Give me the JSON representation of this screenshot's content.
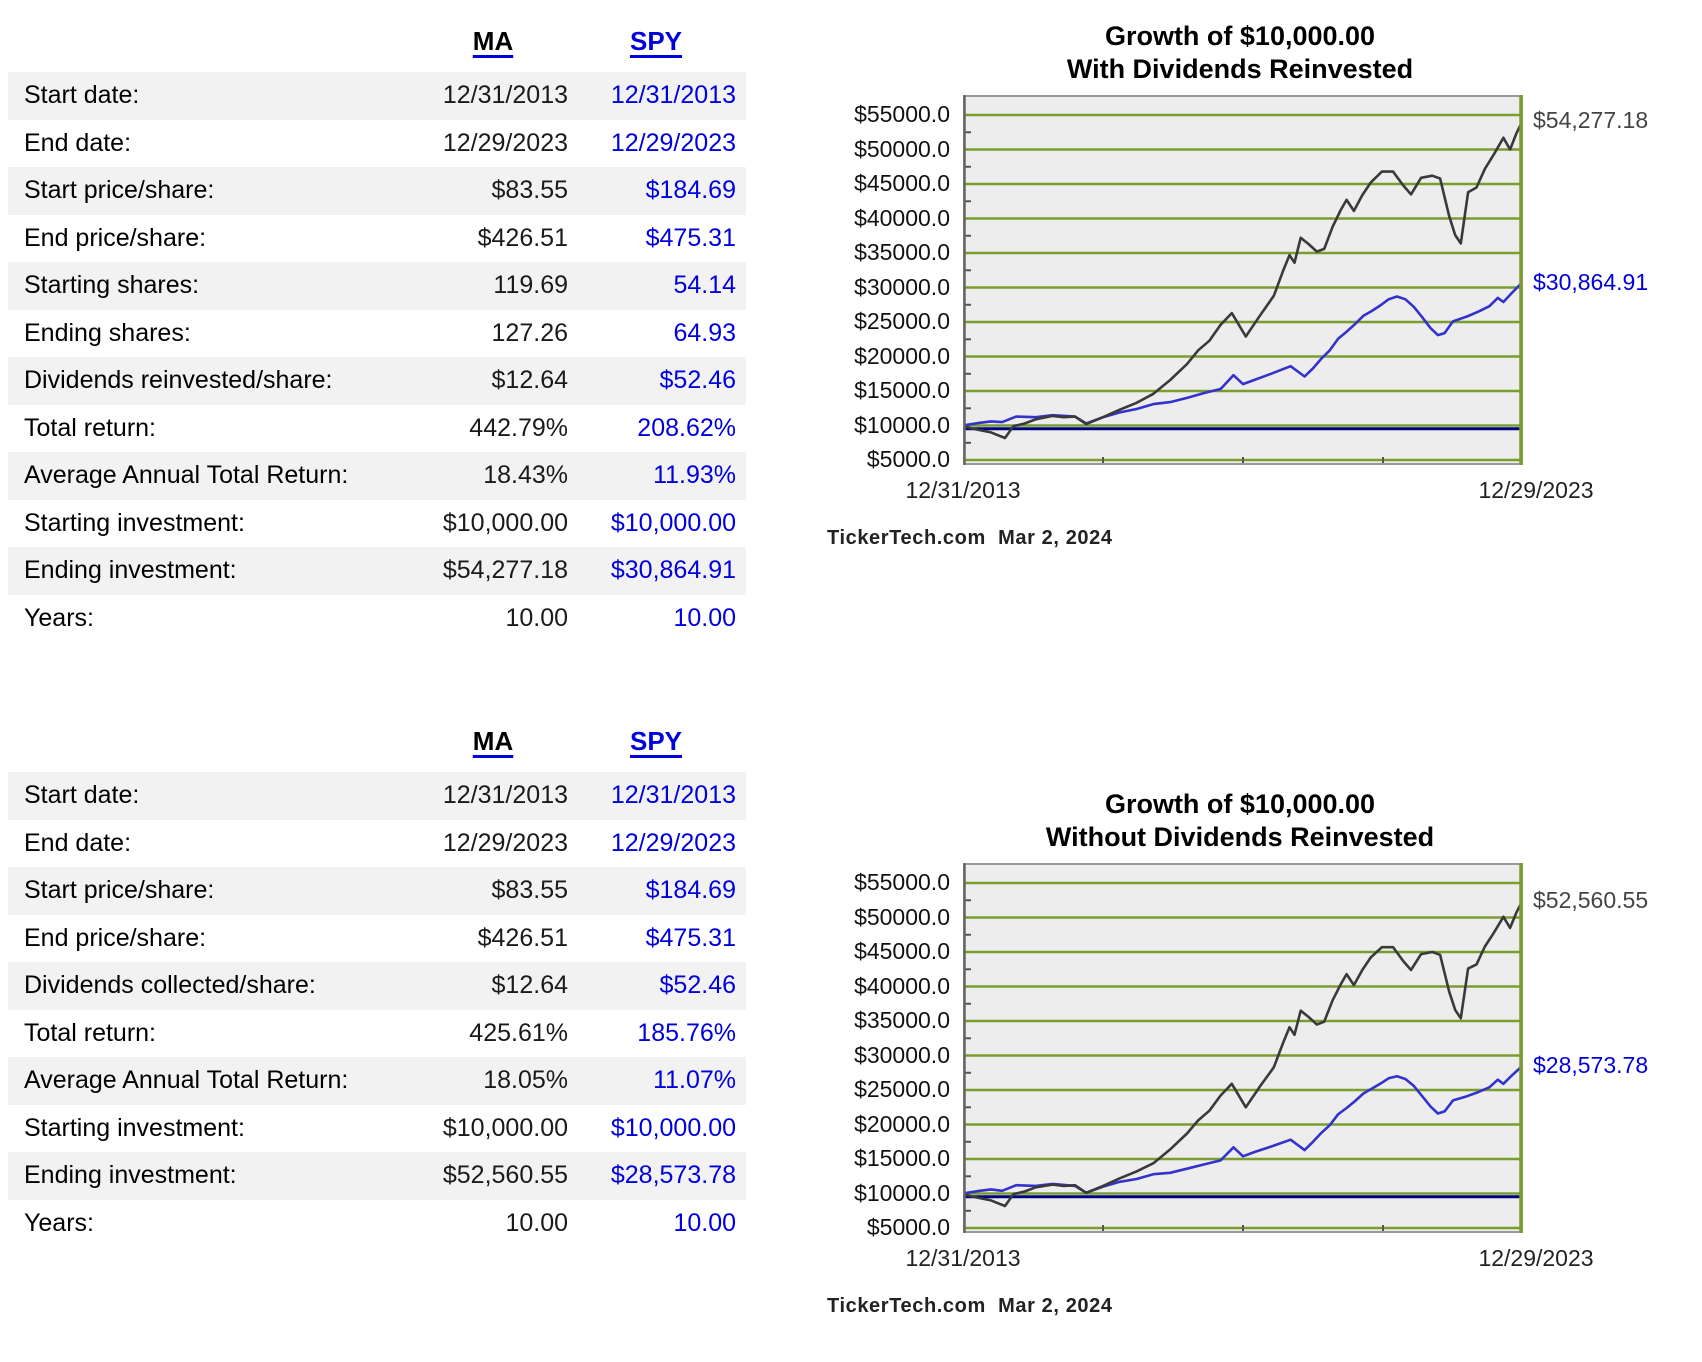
{
  "page": {
    "background": "#ffffff"
  },
  "colors": {
    "link_blue": "#0000dd",
    "ma_line": "#3a3a3a",
    "spy_line": "#3333cc",
    "grid_green": "#7a9e2e",
    "plot_bg": "#ededed",
    "baseline_navy": "#000080",
    "row_alt_gray": "#f2f2f2"
  },
  "tables": [
    {
      "name": "with-dividends",
      "columns": [
        "MA",
        "SPY"
      ],
      "rows": [
        {
          "label": "Start date:",
          "ma": "12/31/2013",
          "spy": "12/31/2013"
        },
        {
          "label": "End date:",
          "ma": "12/29/2023",
          "spy": "12/29/2023"
        },
        {
          "label": "Start price/share:",
          "ma": "$83.55",
          "spy": "$184.69"
        },
        {
          "label": "End price/share:",
          "ma": "$426.51",
          "spy": "$475.31"
        },
        {
          "label": "Starting shares:",
          "ma": "119.69",
          "spy": "54.14"
        },
        {
          "label": "Ending shares:",
          "ma": "127.26",
          "spy": "64.93"
        },
        {
          "label": "Dividends reinvested/share:",
          "ma": "$12.64",
          "spy": "$52.46"
        },
        {
          "label": "Total return:",
          "ma": "442.79%",
          "spy": "208.62%"
        },
        {
          "label": "Average Annual Total Return:",
          "ma": "18.43%",
          "spy": "11.93%"
        },
        {
          "label": "Starting investment:",
          "ma": "$10,000.00",
          "spy": "$10,000.00"
        },
        {
          "label": "Ending investment:",
          "ma": "$54,277.18",
          "spy": "$30,864.91"
        },
        {
          "label": "Years:",
          "ma": "10.00",
          "spy": "10.00"
        }
      ]
    },
    {
      "name": "without-dividends",
      "columns": [
        "MA",
        "SPY"
      ],
      "rows": [
        {
          "label": "Start date:",
          "ma": "12/31/2013",
          "spy": "12/31/2013"
        },
        {
          "label": "End date:",
          "ma": "12/29/2023",
          "spy": "12/29/2023"
        },
        {
          "label": "Start price/share:",
          "ma": "$83.55",
          "spy": "$184.69"
        },
        {
          "label": "End price/share:",
          "ma": "$426.51",
          "spy": "$475.31"
        },
        {
          "label": "Dividends collected/share:",
          "ma": "$12.64",
          "spy": "$52.46"
        },
        {
          "label": "Total return:",
          "ma": "425.61%",
          "spy": "185.76%"
        },
        {
          "label": "Average Annual Total Return:",
          "ma": "18.05%",
          "spy": "11.07%"
        },
        {
          "label": "Starting investment:",
          "ma": "$10,000.00",
          "spy": "$10,000.00"
        },
        {
          "label": "Ending investment:",
          "ma": "$52,560.55",
          "spy": "$28,573.78"
        },
        {
          "label": "Years:",
          "ma": "10.00",
          "spy": "10.00"
        }
      ]
    }
  ],
  "chart_data": [
    {
      "type": "line",
      "title": "Growth of $10,000.00",
      "subtitle": "With Dividends Reinvested",
      "x_axis_labels": [
        "12/31/2013",
        "12/29/2023"
      ],
      "y_tick_values": [
        55000,
        50000,
        45000,
        40000,
        35000,
        30000,
        25000,
        20000,
        15000,
        10000,
        5000
      ],
      "y_tick_labels": [
        "$55000.0",
        "$50000.0",
        "$45000.0",
        "$40000.0",
        "$35000.0",
        "$30000.0",
        "$25000.0",
        "$20000.0",
        "$15000.0",
        "$10000.0",
        "$5000.0"
      ],
      "ylim": [
        4280,
        57900
      ],
      "grid": true,
      "legend": "none",
      "baseline_value": 10000,
      "credit": "TickerTech.com  Mar 2, 2024",
      "series": [
        {
          "name": "MA",
          "color": "#3a3a3a",
          "end_label": "$54,277.18",
          "end_label_color": "#444444",
          "x": [
            0,
            0.02,
            0.05,
            0.075,
            0.09,
            0.11,
            0.13,
            0.16,
            0.18,
            0.2,
            0.22,
            0.25,
            0.28,
            0.31,
            0.34,
            0.37,
            0.4,
            0.42,
            0.44,
            0.46,
            0.48,
            0.505,
            0.53,
            0.555,
            0.572,
            0.583,
            0.592,
            0.603,
            0.617,
            0.632,
            0.645,
            0.66,
            0.675,
            0.685,
            0.698,
            0.713,
            0.728,
            0.748,
            0.768,
            0.786,
            0.8,
            0.818,
            0.838,
            0.852,
            0.868,
            0.879,
            0.889,
            0.902,
            0.917,
            0.932,
            0.948,
            0.965,
            0.977,
            0.988,
            1.0
          ],
          "values": [
            9900,
            9500,
            9000,
            8200,
            9900,
            10300,
            10900,
            11400,
            11200,
            11300,
            10200,
            11200,
            12300,
            13300,
            14600,
            16600,
            18900,
            20900,
            22300,
            24600,
            26300,
            22900,
            25900,
            28800,
            32500,
            34700,
            33600,
            37200,
            36300,
            35200,
            35600,
            38800,
            41300,
            42700,
            41100,
            43400,
            45200,
            46800,
            46800,
            44800,
            43500,
            45900,
            46200,
            45800,
            40400,
            37600,
            36400,
            43800,
            44500,
            47200,
            49300,
            51700,
            50000,
            52300,
            54277
          ]
        },
        {
          "name": "SPY",
          "color": "#3333cc",
          "end_label": "$30,864.91",
          "end_label_color": "#0000dd",
          "x": [
            0,
            0.03,
            0.05,
            0.07,
            0.095,
            0.13,
            0.16,
            0.2,
            0.22,
            0.25,
            0.28,
            0.31,
            0.34,
            0.37,
            0.4,
            0.43,
            0.46,
            0.483,
            0.5,
            0.52,
            0.55,
            0.585,
            0.61,
            0.625,
            0.64,
            0.655,
            0.67,
            0.685,
            0.7,
            0.715,
            0.73,
            0.745,
            0.76,
            0.775,
            0.79,
            0.805,
            0.82,
            0.835,
            0.848,
            0.86,
            0.875,
            0.9,
            0.92,
            0.94,
            0.955,
            0.965,
            0.98,
            1.0
          ],
          "values": [
            10000,
            10400,
            10600,
            10500,
            11300,
            11200,
            11500,
            11300,
            10300,
            11200,
            11900,
            12400,
            13100,
            13400,
            14000,
            14700,
            15300,
            17300,
            16000,
            16600,
            17500,
            18600,
            17100,
            18300,
            19700,
            20900,
            22600,
            23600,
            24700,
            25900,
            26600,
            27400,
            28300,
            28700,
            28300,
            27200,
            25700,
            24100,
            23100,
            23400,
            25100,
            25800,
            26500,
            27300,
            28500,
            27900,
            29200,
            30864
          ]
        }
      ]
    },
    {
      "type": "line",
      "title": "Growth of $10,000.00",
      "subtitle": "Without Dividends Reinvested",
      "x_axis_labels": [
        "12/31/2013",
        "12/29/2023"
      ],
      "y_tick_values": [
        55000,
        50000,
        45000,
        40000,
        35000,
        30000,
        25000,
        20000,
        15000,
        10000,
        5000
      ],
      "y_tick_labels": [
        "$55000.0",
        "$50000.0",
        "$45000.0",
        "$40000.0",
        "$35000.0",
        "$30000.0",
        "$25000.0",
        "$20000.0",
        "$15000.0",
        "$10000.0",
        "$5000.0"
      ],
      "ylim": [
        4280,
        57900
      ],
      "grid": true,
      "legend": "none",
      "baseline_value": 10000,
      "credit": "TickerTech.com  Mar 2, 2024",
      "series": [
        {
          "name": "MA",
          "color": "#3a3a3a",
          "end_label": "$52,560.55",
          "end_label_color": "#444444",
          "x": [
            0,
            0.02,
            0.05,
            0.075,
            0.09,
            0.11,
            0.13,
            0.16,
            0.18,
            0.2,
            0.22,
            0.25,
            0.28,
            0.31,
            0.34,
            0.37,
            0.4,
            0.42,
            0.44,
            0.46,
            0.48,
            0.505,
            0.53,
            0.555,
            0.572,
            0.583,
            0.592,
            0.603,
            0.617,
            0.632,
            0.645,
            0.66,
            0.675,
            0.685,
            0.698,
            0.713,
            0.728,
            0.748,
            0.768,
            0.786,
            0.8,
            0.818,
            0.838,
            0.852,
            0.868,
            0.879,
            0.889,
            0.902,
            0.917,
            0.932,
            0.948,
            0.965,
            0.977,
            0.988,
            1.0
          ],
          "values": [
            9900,
            9500,
            9000,
            8200,
            9900,
            10300,
            10900,
            11300,
            11100,
            11200,
            10100,
            11100,
            12200,
            13200,
            14400,
            16400,
            18700,
            20600,
            22000,
            24200,
            25900,
            22500,
            25500,
            28300,
            31900,
            34100,
            33000,
            36500,
            35600,
            34500,
            34900,
            38000,
            40400,
            41800,
            40200,
            42400,
            44200,
            45700,
            45700,
            43700,
            42400,
            44700,
            45000,
            44600,
            39300,
            36600,
            35400,
            42600,
            43200,
            45800,
            47800,
            50100,
            48500,
            50700,
            52561
          ]
        },
        {
          "name": "SPY",
          "color": "#3333cc",
          "end_label": "$28,573.78",
          "end_label_color": "#0000dd",
          "x": [
            0,
            0.03,
            0.05,
            0.07,
            0.095,
            0.13,
            0.16,
            0.2,
            0.22,
            0.25,
            0.28,
            0.31,
            0.34,
            0.37,
            0.4,
            0.43,
            0.46,
            0.483,
            0.5,
            0.52,
            0.55,
            0.585,
            0.61,
            0.625,
            0.64,
            0.655,
            0.67,
            0.685,
            0.7,
            0.715,
            0.73,
            0.745,
            0.76,
            0.775,
            0.79,
            0.805,
            0.82,
            0.835,
            0.848,
            0.86,
            0.875,
            0.9,
            0.92,
            0.94,
            0.955,
            0.965,
            0.98,
            1.0
          ],
          "values": [
            10000,
            10400,
            10600,
            10400,
            11200,
            11100,
            11400,
            11100,
            10100,
            11000,
            11700,
            12100,
            12800,
            13000,
            13600,
            14200,
            14800,
            16700,
            15400,
            16000,
            16800,
            17800,
            16300,
            17500,
            18800,
            19900,
            21500,
            22400,
            23400,
            24500,
            25200,
            25900,
            26700,
            27000,
            26600,
            25600,
            24100,
            22600,
            21600,
            21900,
            23500,
            24100,
            24700,
            25400,
            26500,
            25900,
            27100,
            28574
          ]
        }
      ]
    }
  ]
}
